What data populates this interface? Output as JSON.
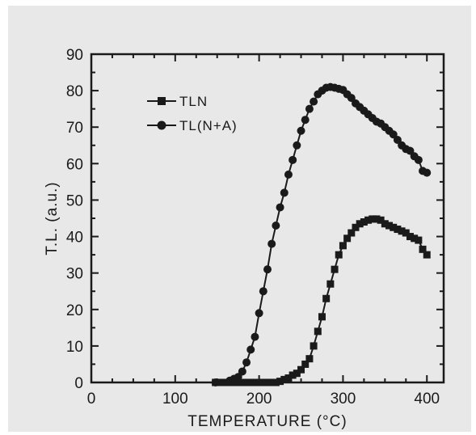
{
  "chart_data": {
    "type": "line",
    "xlabel": "TEMPERATURE (°C)",
    "ylabel": "T.L. (a.u.)",
    "xlim": [
      0,
      420
    ],
    "ylim": [
      0,
      90
    ],
    "xticks": [
      0,
      100,
      200,
      300,
      400
    ],
    "yticks": [
      0,
      10,
      20,
      30,
      40,
      50,
      60,
      70,
      80,
      90
    ],
    "grid": false,
    "legend_position": "top-left",
    "series": [
      {
        "name": "TLN",
        "marker": "square",
        "color": "#1a1a1a",
        "x": [
          148,
          155,
          160,
          165,
          170,
          175,
          180,
          185,
          190,
          195,
          200,
          205,
          210,
          215,
          220,
          225,
          230,
          235,
          240,
          245,
          250,
          255,
          260,
          265,
          270,
          275,
          280,
          285,
          290,
          295,
          300,
          305,
          310,
          315,
          320,
          325,
          330,
          335,
          340,
          345,
          350,
          355,
          360,
          365,
          370,
          375,
          380,
          385,
          390,
          395,
          400
        ],
        "y": [
          0,
          0,
          0,
          0,
          0,
          0,
          0,
          0,
          0,
          0,
          0,
          0,
          0,
          0,
          0,
          0.3,
          0.8,
          1.2,
          2,
          2.5,
          3.5,
          5,
          6.5,
          10,
          14,
          18,
          23,
          27,
          31,
          35,
          37.5,
          39.5,
          41,
          42.5,
          43.5,
          44,
          44.5,
          44.8,
          44.8,
          44.5,
          43.5,
          43,
          42.5,
          42,
          41.5,
          41,
          40,
          39.5,
          39,
          36.5,
          35
        ]
      },
      {
        "name": "TL(N+A)",
        "marker": "circle",
        "color": "#1a1a1a",
        "x": [
          148,
          165,
          170,
          175,
          180,
          185,
          190,
          195,
          200,
          205,
          210,
          215,
          220,
          225,
          230,
          235,
          240,
          245,
          250,
          255,
          260,
          265,
          270,
          275,
          280,
          285,
          290,
          295,
          300,
          305,
          310,
          315,
          320,
          325,
          330,
          335,
          340,
          345,
          350,
          355,
          360,
          365,
          370,
          375,
          380,
          385,
          390,
          395,
          400
        ],
        "y": [
          0,
          0.5,
          1,
          1.5,
          3,
          5.5,
          9,
          12.5,
          19,
          25,
          31,
          38,
          43,
          48,
          52,
          57,
          61,
          65,
          69,
          72,
          75,
          77,
          79,
          80,
          80.8,
          81,
          80.8,
          80.5,
          80.2,
          79,
          78,
          76.5,
          75.5,
          74.5,
          73.5,
          72.5,
          71.5,
          71,
          70,
          69,
          68,
          66.5,
          65,
          64,
          63.5,
          62,
          61,
          58,
          57.5
        ]
      }
    ]
  }
}
